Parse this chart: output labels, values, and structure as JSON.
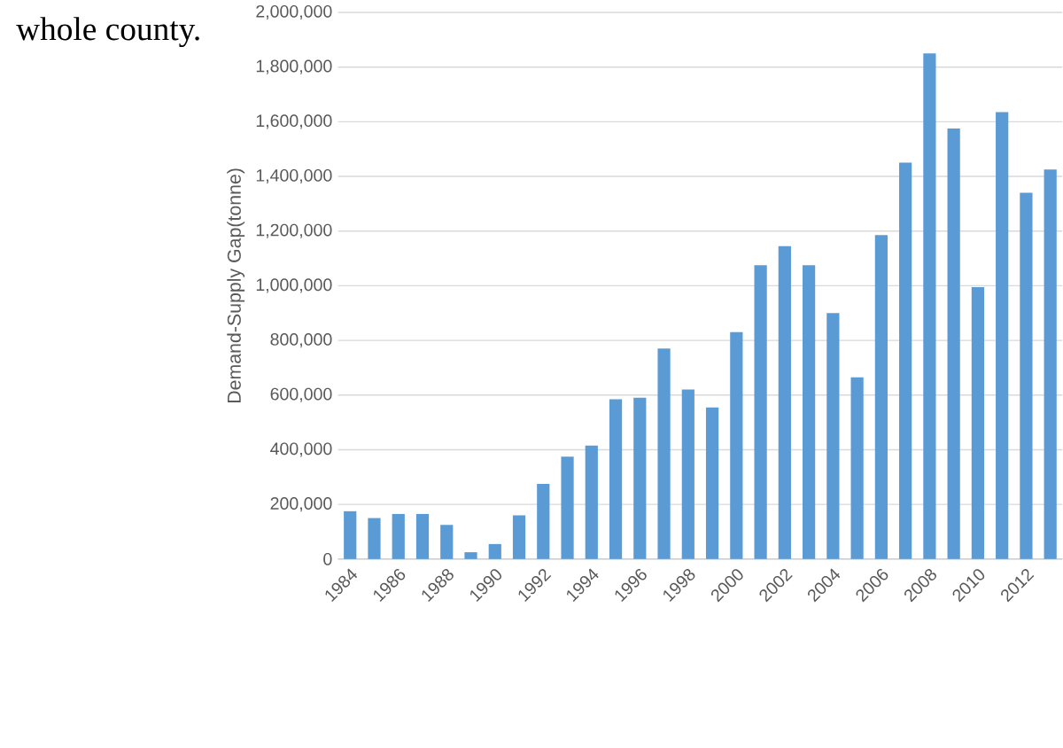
{
  "chart_data": {
    "type": "bar",
    "annotations": [
      "whole county."
    ],
    "ylabel": "Demand-Supply Gap(tonne)",
    "categories": [
      "1984",
      null,
      "1986",
      null,
      "1988",
      null,
      "1990",
      null,
      "1992",
      null,
      "1994",
      null,
      "1996",
      null,
      "1998",
      null,
      "2000",
      null,
      "2002",
      null,
      "2004",
      null,
      "2006",
      null,
      "2008",
      null,
      "2010",
      null,
      "2012",
      null
    ],
    "values": [
      175000,
      150000,
      165000,
      165000,
      125000,
      25000,
      55000,
      160000,
      275000,
      375000,
      415000,
      585000,
      590000,
      770000,
      620000,
      555000,
      830000,
      1075000,
      1145000,
      1075000,
      900000,
      665000,
      1185000,
      1450000,
      1850000,
      1575000,
      995000,
      1635000,
      1340000,
      1425000
    ],
    "color": "#5b9bd5",
    "ylim": [
      0,
      2000000
    ],
    "yticks": [
      0,
      {
        "value": 200000,
        "label": "200,000"
      },
      {
        "value": 400000,
        "label": "400,000"
      },
      {
        "value": 600000,
        "label": "600,000"
      },
      {
        "value": 800000,
        "label": "800,000"
      },
      {
        "value": 1000000,
        "label": "1,000,000"
      },
      {
        "value": 1200000,
        "label": "1,200,000"
      },
      {
        "value": 1400000,
        "label": "1,400,000"
      },
      {
        "value": 1600000,
        "label": "1,600,000"
      },
      {
        "value": 1800000,
        "label": "1,800,000"
      },
      {
        "value": 2000000,
        "label": "2,000,000"
      }
    ],
    "grid": "y"
  }
}
